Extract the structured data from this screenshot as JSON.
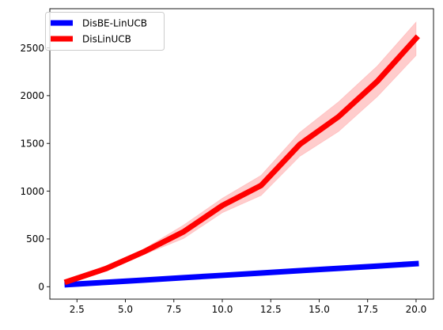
{
  "chart_data": {
    "type": "line",
    "title": "",
    "xlabel": "",
    "ylabel": "",
    "x": [
      2,
      4,
      6,
      8,
      10,
      12,
      14,
      16,
      18,
      20
    ],
    "xlim": [
      1.1,
      20.9
    ],
    "ylim": [
      -130,
      2910
    ],
    "xticks": [
      2.5,
      5.0,
      7.5,
      10.0,
      12.5,
      15.0,
      17.5,
      20.0
    ],
    "xtick_labels": [
      "2.5",
      "5.0",
      "7.5",
      "10.0",
      "12.5",
      "15.0",
      "17.5",
      "20.0"
    ],
    "yticks": [
      0,
      500,
      1000,
      1500,
      2000,
      2500
    ],
    "ytick_labels": [
      "0",
      "500",
      "1000",
      "1500",
      "2000",
      "2500"
    ],
    "grid": false,
    "legend_position": "upper-left",
    "series": [
      {
        "name": "DisBE-LinUCB",
        "color": "#0000ff",
        "values": [
          22,
          46,
          70,
          95,
          119,
          143,
          168,
          192,
          216,
          241
        ],
        "band_low": null,
        "band_high": null
      },
      {
        "name": "DisLinUCB",
        "color": "#ff0000",
        "band_color": "#ff9999",
        "values": [
          55,
          190,
          370,
          575,
          850,
          1060,
          1490,
          1780,
          2150,
          2600
        ],
        "band_low": [
          45,
          175,
          340,
          505,
          775,
          955,
          1365,
          1625,
          1990,
          2420
        ],
        "band_high": [
          65,
          205,
          400,
          645,
          925,
          1165,
          1615,
          1935,
          2310,
          2770
        ]
      }
    ]
  }
}
